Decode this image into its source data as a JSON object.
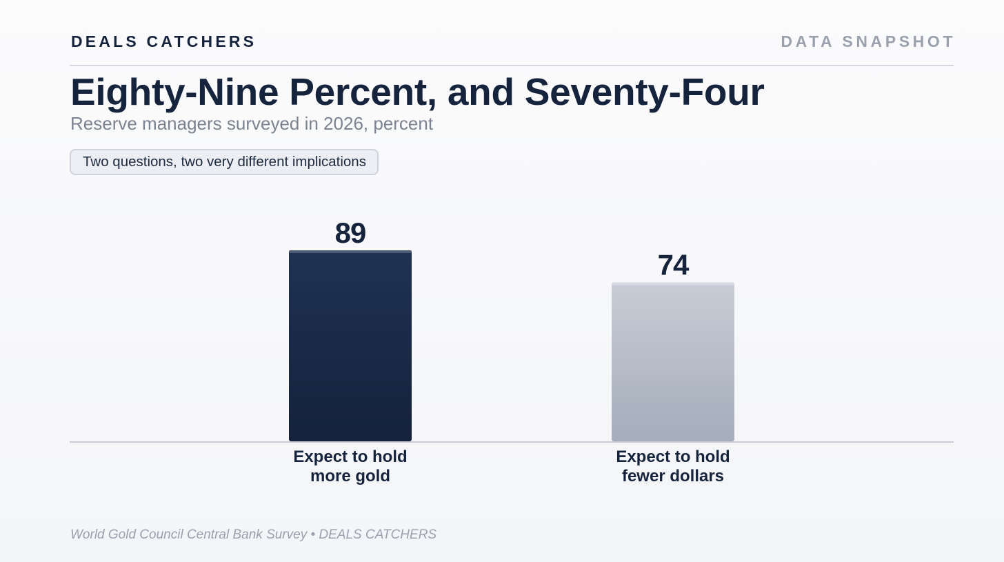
{
  "header": {
    "brand": "DEALS CATCHERS",
    "kicker": "DATA SNAPSHOT"
  },
  "chart_data": {
    "type": "bar",
    "title": "Eighty-Nine Percent, and Seventy-Four",
    "subtitle": "Reserve managers surveyed in 2026, percent",
    "annotation": "Two questions, two very different implications",
    "categories": [
      [
        "Expect to hold",
        "more gold"
      ],
      [
        "Expect to hold",
        "fewer dollars"
      ]
    ],
    "values": [
      89,
      74
    ],
    "data_labels": [
      "89",
      "74"
    ],
    "ylim": [
      0,
      100
    ],
    "xlabel": "",
    "ylabel": "",
    "grid": false,
    "legend": "none",
    "colors": {
      "bar_1": [
        "#1f3254",
        "#14223b"
      ],
      "bar_2": [
        "#c8ccd6",
        "#a5adbb"
      ],
      "bar_1_cap": "#4c5c77",
      "bar_2_cap": "#d5d9e1",
      "baseline": "#c9ccd6"
    }
  },
  "footer": {
    "source": "World Gold Council Central Bank Survey • DEALS CATCHERS"
  }
}
